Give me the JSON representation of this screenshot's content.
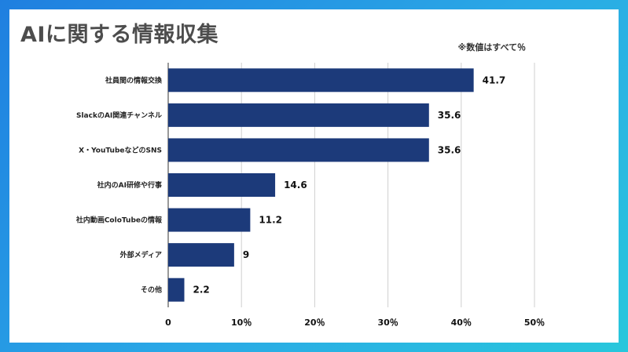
{
  "title": "AIに関する情報収集",
  "note": "※数値はすべて％",
  "chart_data": {
    "type": "bar",
    "orientation": "horizontal",
    "categories": [
      "社員間の情報交換",
      "SlackのAI関連チャンネル",
      "X・YouTubeなどのSNS",
      "社内のAI研修や行事",
      "社内動画ColoTubeの情報",
      "外部メディア",
      "その他"
    ],
    "values": [
      41.7,
      35.6,
      35.6,
      14.6,
      11.2,
      9,
      2.2
    ],
    "value_labels": [
      "41.7",
      "35.6",
      "35.6",
      "14.6",
      "11.2",
      "9",
      "2.2"
    ],
    "xlim": [
      0,
      50
    ],
    "ticks": [
      0,
      10,
      20,
      30,
      40,
      50
    ],
    "tick_labels": [
      "0",
      "10％",
      "20％",
      "30％",
      "40％",
      "50％"
    ],
    "bar_color": "#1c3a7a",
    "grid": true
  }
}
